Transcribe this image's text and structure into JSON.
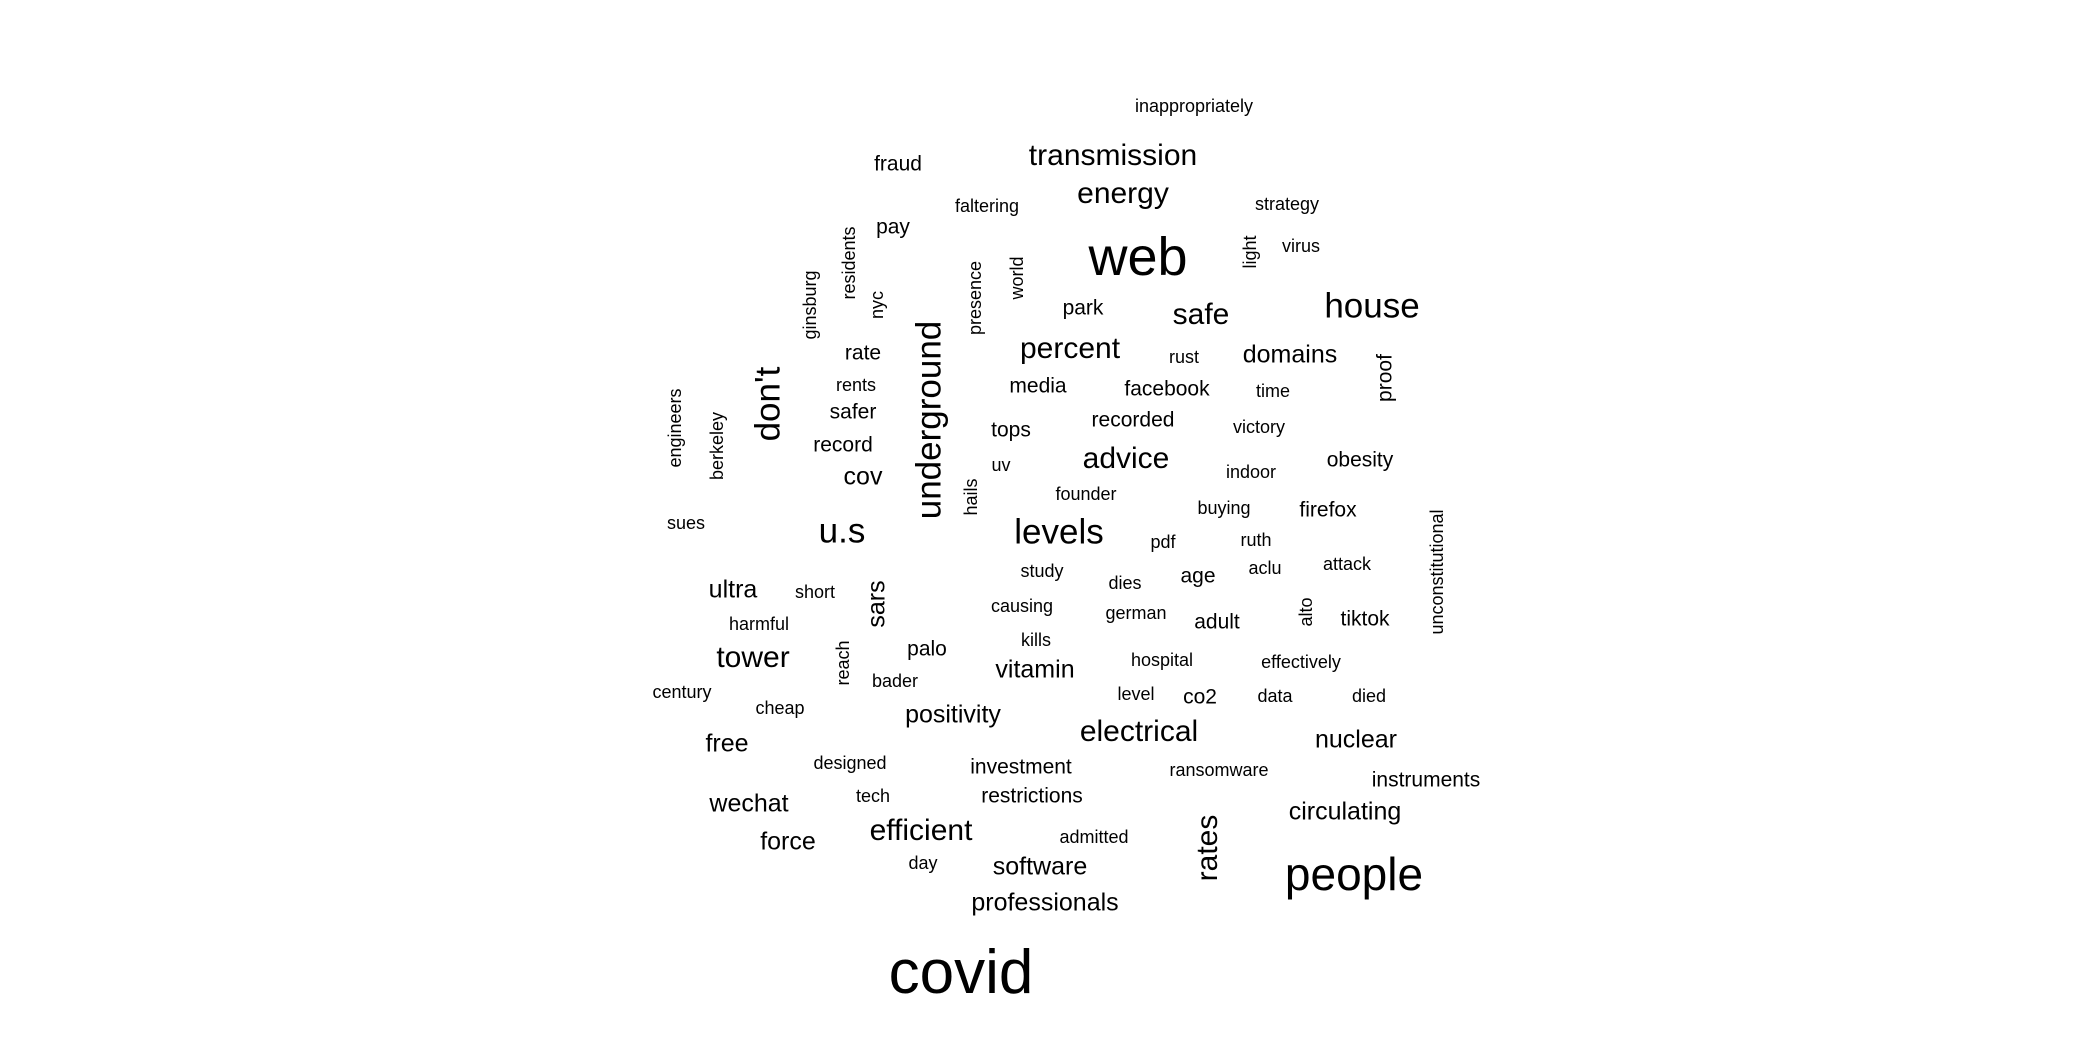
{
  "colors": {
    "background": "#ffffff",
    "text": "#000000"
  },
  "words": [
    {
      "text": "inappropriately",
      "weight": 1,
      "vertical": false
    },
    {
      "text": "fraud",
      "weight": 2,
      "vertical": false
    },
    {
      "text": "transmission",
      "weight": 4,
      "vertical": false
    },
    {
      "text": "faltering",
      "weight": 1,
      "vertical": false
    },
    {
      "text": "energy",
      "weight": 4,
      "vertical": false
    },
    {
      "text": "strategy",
      "weight": 1,
      "vertical": false
    },
    {
      "text": "pay",
      "weight": 2,
      "vertical": false
    },
    {
      "text": "residents",
      "weight": 1,
      "vertical": true
    },
    {
      "text": "web",
      "weight": 8,
      "vertical": false
    },
    {
      "text": "light",
      "weight": 1,
      "vertical": true
    },
    {
      "text": "virus",
      "weight": 1,
      "vertical": false
    },
    {
      "text": "ginsburg",
      "weight": 1,
      "vertical": true
    },
    {
      "text": "nyc",
      "weight": 1,
      "vertical": true
    },
    {
      "text": "presence",
      "weight": 1,
      "vertical": true
    },
    {
      "text": "world",
      "weight": 1,
      "vertical": true
    },
    {
      "text": "park",
      "weight": 2,
      "vertical": false
    },
    {
      "text": "safe",
      "weight": 4,
      "vertical": false
    },
    {
      "text": "house",
      "weight": 5,
      "vertical": false
    },
    {
      "text": "underground",
      "weight": 5,
      "vertical": true
    },
    {
      "text": "percent",
      "weight": 4,
      "vertical": false
    },
    {
      "text": "rate",
      "weight": 2,
      "vertical": false
    },
    {
      "text": "rust",
      "weight": 1,
      "vertical": false
    },
    {
      "text": "domains",
      "weight": 3,
      "vertical": false
    },
    {
      "text": "proof",
      "weight": 2,
      "vertical": true
    },
    {
      "text": "don't",
      "weight": 5,
      "vertical": true
    },
    {
      "text": "rents",
      "weight": 1,
      "vertical": false
    },
    {
      "text": "media",
      "weight": 2,
      "vertical": false
    },
    {
      "text": "facebook",
      "weight": 2,
      "vertical": false
    },
    {
      "text": "time",
      "weight": 1,
      "vertical": false
    },
    {
      "text": "engineers",
      "weight": 1,
      "vertical": true
    },
    {
      "text": "safer",
      "weight": 2,
      "vertical": false
    },
    {
      "text": "recorded",
      "weight": 2,
      "vertical": false
    },
    {
      "text": "berkeley",
      "weight": 1,
      "vertical": true
    },
    {
      "text": "tops",
      "weight": 2,
      "vertical": false
    },
    {
      "text": "victory",
      "weight": 1,
      "vertical": false
    },
    {
      "text": "record",
      "weight": 2,
      "vertical": false
    },
    {
      "text": "advice",
      "weight": 4,
      "vertical": false
    },
    {
      "text": "obesity",
      "weight": 2,
      "vertical": false
    },
    {
      "text": "uv",
      "weight": 1,
      "vertical": false
    },
    {
      "text": "cov",
      "weight": 3,
      "vertical": false
    },
    {
      "text": "indoor",
      "weight": 1,
      "vertical": false
    },
    {
      "text": "hails",
      "weight": 1,
      "vertical": true
    },
    {
      "text": "founder",
      "weight": 1,
      "vertical": false
    },
    {
      "text": "buying",
      "weight": 1,
      "vertical": false
    },
    {
      "text": "firefox",
      "weight": 2,
      "vertical": false
    },
    {
      "text": "sues",
      "weight": 1,
      "vertical": false
    },
    {
      "text": "u.s",
      "weight": 5,
      "vertical": false
    },
    {
      "text": "levels",
      "weight": 5,
      "vertical": false
    },
    {
      "text": "unconstitutional",
      "weight": 1,
      "vertical": true
    },
    {
      "text": "pdf",
      "weight": 1,
      "vertical": false
    },
    {
      "text": "ruth",
      "weight": 1,
      "vertical": false
    },
    {
      "text": "attack",
      "weight": 1,
      "vertical": false
    },
    {
      "text": "study",
      "weight": 1,
      "vertical": false
    },
    {
      "text": "aclu",
      "weight": 1,
      "vertical": false
    },
    {
      "text": "ultra",
      "weight": 3,
      "vertical": false
    },
    {
      "text": "short",
      "weight": 1,
      "vertical": false
    },
    {
      "text": "sars",
      "weight": 3,
      "vertical": true
    },
    {
      "text": "dies",
      "weight": 1,
      "vertical": false
    },
    {
      "text": "age",
      "weight": 2,
      "vertical": false
    },
    {
      "text": "causing",
      "weight": 1,
      "vertical": false
    },
    {
      "text": "alto",
      "weight": 1,
      "vertical": true
    },
    {
      "text": "german",
      "weight": 1,
      "vertical": false
    },
    {
      "text": "harmful",
      "weight": 1,
      "vertical": false
    },
    {
      "text": "adult",
      "weight": 2,
      "vertical": false
    },
    {
      "text": "tiktok",
      "weight": 2,
      "vertical": false
    },
    {
      "text": "kills",
      "weight": 1,
      "vertical": false
    },
    {
      "text": "palo",
      "weight": 2,
      "vertical": false
    },
    {
      "text": "tower",
      "weight": 4,
      "vertical": false
    },
    {
      "text": "reach",
      "weight": 1,
      "vertical": true
    },
    {
      "text": "hospital",
      "weight": 1,
      "vertical": false
    },
    {
      "text": "effectively",
      "weight": 1,
      "vertical": false
    },
    {
      "text": "vitamin",
      "weight": 3,
      "vertical": false
    },
    {
      "text": "bader",
      "weight": 1,
      "vertical": false
    },
    {
      "text": "century",
      "weight": 1,
      "vertical": false
    },
    {
      "text": "level",
      "weight": 1,
      "vertical": false
    },
    {
      "text": "co2",
      "weight": 2,
      "vertical": false
    },
    {
      "text": "data",
      "weight": 1,
      "vertical": false
    },
    {
      "text": "died",
      "weight": 1,
      "vertical": false
    },
    {
      "text": "cheap",
      "weight": 1,
      "vertical": false
    },
    {
      "text": "positivity",
      "weight": 3,
      "vertical": false
    },
    {
      "text": "electrical",
      "weight": 4,
      "vertical": false
    },
    {
      "text": "free",
      "weight": 3,
      "vertical": false
    },
    {
      "text": "nuclear",
      "weight": 3,
      "vertical": false
    },
    {
      "text": "designed",
      "weight": 1,
      "vertical": false
    },
    {
      "text": "investment",
      "weight": 2,
      "vertical": false
    },
    {
      "text": "ransomware",
      "weight": 1,
      "vertical": false
    },
    {
      "text": "instruments",
      "weight": 2,
      "vertical": false
    },
    {
      "text": "tech",
      "weight": 1,
      "vertical": false
    },
    {
      "text": "restrictions",
      "weight": 2,
      "vertical": false
    },
    {
      "text": "wechat",
      "weight": 3,
      "vertical": false
    },
    {
      "text": "circulating",
      "weight": 3,
      "vertical": false
    },
    {
      "text": "efficient",
      "weight": 4,
      "vertical": false
    },
    {
      "text": "rates",
      "weight": 4,
      "vertical": true
    },
    {
      "text": "admitted",
      "weight": 1,
      "vertical": false
    },
    {
      "text": "force",
      "weight": 3,
      "vertical": false
    },
    {
      "text": "day",
      "weight": 1,
      "vertical": false
    },
    {
      "text": "software",
      "weight": 3,
      "vertical": false
    },
    {
      "text": "people",
      "weight": 7,
      "vertical": false
    },
    {
      "text": "professionals",
      "weight": 3,
      "vertical": false
    },
    {
      "text": "covid",
      "weight": 9,
      "vertical": false
    }
  ]
}
